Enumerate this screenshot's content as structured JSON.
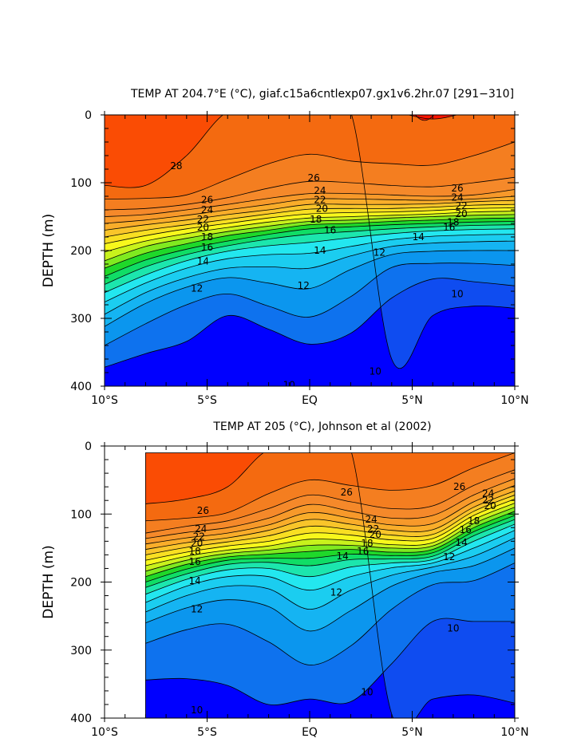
{
  "chart_data": [
    {
      "type": "heatmap",
      "subtype": "filled-contour depth-latitude section",
      "title": "TEMP AT 204.7°E (°C), giaf.c15a6cntlexp07.gx1v6.2hr.07 [291−310]",
      "xlabel": "",
      "ylabel": "DEPTH (m)",
      "x_ticks": [
        "10°S",
        "5°S",
        "EQ",
        "5°N",
        "10°N"
      ],
      "x_tick_values": [
        -10,
        -5,
        0,
        5,
        10
      ],
      "y_ticks": [
        "0",
        "100",
        "200",
        "300",
        "400"
      ],
      "y_tick_values": [
        0,
        100,
        200,
        300,
        400
      ],
      "xlim": [
        -10,
        10
      ],
      "ylim": [
        400,
        0
      ],
      "data_xlim": [
        -10,
        10
      ],
      "units": "°C",
      "contour_interval": 1,
      "color_levels": [
        8,
        9,
        10,
        11,
        12,
        13,
        14,
        15,
        16,
        17,
        18,
        19,
        20,
        21,
        22,
        23,
        24,
        25,
        26,
        27,
        28,
        29
      ],
      "isotherm_depths": {
        "lat": [
          -10,
          -8,
          -6,
          -4,
          -2,
          0,
          2,
          4,
          6,
          8,
          10
        ],
        "29": [
          -999,
          -999,
          -999,
          -999,
          -999,
          -999,
          -999,
          -999,
          6,
          -999,
          -999
        ],
        "28": [
          104,
          104,
          60,
          -999,
          -999,
          -999,
          -999,
          -999,
          -999,
          -999,
          -999
        ],
        "27": [
          124,
          123,
          118,
          95,
          72,
          58,
          68,
          72,
          74,
          60,
          40
        ],
        "26": [
          140,
          138,
          132,
          122,
          108,
          98,
          100,
          104,
          106,
          100,
          92
        ],
        "25": [
          150,
          147,
          140,
          132,
          123,
          116,
          116,
          118,
          120,
          118,
          110
        ],
        "24": [
          160,
          155,
          148,
          140,
          132,
          124,
          124,
          125,
          126,
          124,
          120
        ],
        "23": [
          170,
          162,
          155,
          147,
          140,
          132,
          132,
          132,
          131,
          128,
          126
        ],
        "22": [
          180,
          170,
          162,
          154,
          146,
          139,
          138,
          138,
          136,
          133,
          132
        ],
        "21": [
          190,
          178,
          168,
          160,
          152,
          146,
          144,
          143,
          141,
          138,
          137
        ],
        "20": [
          202,
          186,
          175,
          166,
          158,
          152,
          150,
          148,
          146,
          143,
          142
        ],
        "19": [
          215,
          194,
          182,
          172,
          164,
          157,
          155,
          152,
          150,
          148,
          147
        ],
        "18": [
          226,
          204,
          190,
          178,
          170,
          162,
          160,
          157,
          155,
          153,
          152
        ],
        "17": [
          238,
          214,
          198,
          186,
          176,
          168,
          165,
          162,
          160,
          158,
          157
        ],
        "16": [
          250,
          224,
          206,
          193,
          183,
          176,
          172,
          168,
          165,
          163,
          162
        ],
        "15": [
          262,
          236,
          215,
          201,
          193,
          188,
          181,
          175,
          171,
          169,
          168
        ],
        "14": [
          276,
          248,
          226,
          212,
          206,
          204,
          194,
          184,
          179,
          177,
          176
        ],
        "13": [
          294,
          262,
          240,
          226,
          224,
          226,
          208,
          194,
          189,
          187,
          186
        ],
        "12": [
          312,
          278,
          254,
          240,
          248,
          256,
          228,
          206,
          201,
          200,
          200
        ],
        "11": [
          340,
          308,
          280,
          264,
          282,
          298,
          268,
          225,
          219,
          219,
          222
        ],
        "10": [
          372,
          352,
          334,
          296,
          316,
          338,
          322,
          270,
          242,
          246,
          252
        ],
        "9": [
          -999,
          -999,
          -999,
          -999,
          -999,
          -999,
          -999,
          360,
          296,
          282,
          285
        ],
        "8": [
          -999,
          -999,
          -999,
          -999,
          -999,
          -999,
          -999,
          -999,
          -999,
          395,
          372
        ]
      },
      "contour_labels": [
        {
          "text": "28",
          "lat": -6.5,
          "depth": 75
        },
        {
          "text": "26",
          "lat": 0.2,
          "depth": 93
        },
        {
          "text": "26",
          "lat": 7.2,
          "depth": 108
        },
        {
          "text": "24",
          "lat": 0.5,
          "depth": 112
        },
        {
          "text": "24",
          "lat": 7.2,
          "depth": 122
        },
        {
          "text": "22",
          "lat": 0.5,
          "depth": 125
        },
        {
          "text": "22",
          "lat": 7.4,
          "depth": 134
        },
        {
          "text": "20",
          "lat": 0.6,
          "depth": 138
        },
        {
          "text": "20",
          "lat": 7.4,
          "depth": 146
        },
        {
          "text": "26",
          "lat": -5.0,
          "depth": 125
        },
        {
          "text": "24",
          "lat": -5.0,
          "depth": 140
        },
        {
          "text": "22",
          "lat": -5.2,
          "depth": 154
        },
        {
          "text": "20",
          "lat": -5.2,
          "depth": 166
        },
        {
          "text": "18",
          "lat": -5.0,
          "depth": 180
        },
        {
          "text": "18",
          "lat": 0.3,
          "depth": 154
        },
        {
          "text": "18",
          "lat": 7.0,
          "depth": 158
        },
        {
          "text": "16",
          "lat": -5.0,
          "depth": 195
        },
        {
          "text": "16",
          "lat": 1.0,
          "depth": 170
        },
        {
          "text": "16",
          "lat": 6.8,
          "depth": 166
        },
        {
          "text": "14",
          "lat": -5.2,
          "depth": 216
        },
        {
          "text": "14",
          "lat": 0.5,
          "depth": 200
        },
        {
          "text": "14",
          "lat": 5.3,
          "depth": 180
        },
        {
          "text": "12",
          "lat": -5.5,
          "depth": 256
        },
        {
          "text": "12",
          "lat": -0.3,
          "depth": 252
        },
        {
          "text": "12",
          "lat": 3.4,
          "depth": 203
        },
        {
          "text": "10",
          "lat": 7.2,
          "depth": 264
        },
        {
          "text": "10",
          "lat": 3.2,
          "depth": 378
        },
        {
          "text": "10",
          "lat": -1.0,
          "depth": 398
        }
      ]
    },
    {
      "type": "heatmap",
      "subtype": "filled-contour depth-latitude section",
      "title": "TEMP AT 205 (°C), Johnson et al (2002)",
      "xlabel": "",
      "ylabel": "DEPTH (m)",
      "x_ticks": [
        "10°S",
        "5°S",
        "EQ",
        "5°N",
        "10°N"
      ],
      "x_tick_values": [
        -10,
        -5,
        0,
        5,
        10
      ],
      "y_ticks": [
        "0",
        "100",
        "200",
        "300",
        "400"
      ],
      "y_tick_values": [
        0,
        100,
        200,
        300,
        400
      ],
      "xlim": [
        -10,
        10
      ],
      "ylim": [
        400,
        0
      ],
      "data_xlim": [
        -8,
        10
      ],
      "data_ylim": [
        10,
        400
      ],
      "units": "°C",
      "contour_interval": 1,
      "color_levels": [
        8,
        9,
        10,
        11,
        12,
        13,
        14,
        15,
        16,
        17,
        18,
        19,
        20,
        21,
        22,
        23,
        24,
        25,
        26,
        27,
        28,
        29
      ],
      "isotherm_depths": {
        "lat": [
          -8,
          -6,
          -4,
          -2,
          0,
          2,
          4,
          6,
          8,
          10
        ],
        "28": [
          85,
          78,
          60,
          -999,
          -999,
          -999,
          -999,
          -999,
          -999,
          -999
        ],
        "27": [
          110,
          106,
          98,
          70,
          50,
          58,
          65,
          58,
          32,
          10
        ],
        "26": [
          128,
          118,
          110,
          92,
          72,
          82,
          92,
          88,
          58,
          35
        ],
        "25": [
          136,
          127,
          120,
          106,
          86,
          96,
          106,
          102,
          72,
          48
        ],
        "24": [
          144,
          135,
          128,
          116,
          98,
          106,
          116,
          114,
          82,
          58
        ],
        "23": [
          152,
          142,
          135,
          124,
          108,
          115,
          124,
          123,
          90,
          66
        ],
        "22": [
          160,
          149,
          141,
          132,
          118,
          123,
          131,
          130,
          96,
          72
        ],
        "21": [
          168,
          156,
          147,
          140,
          128,
          131,
          138,
          136,
          102,
          78
        ],
        "20": [
          176,
          162,
          153,
          147,
          137,
          139,
          145,
          142,
          108,
          84
        ],
        "19": [
          184,
          168,
          158,
          153,
          146,
          146,
          150,
          147,
          114,
          90
        ],
        "18": [
          192,
          174,
          163,
          159,
          155,
          152,
          156,
          152,
          120,
          96
        ],
        "17": [
          200,
          181,
          168,
          165,
          165,
          159,
          161,
          157,
          126,
          102
        ],
        "16": [
          208,
          188,
          174,
          171,
          176,
          167,
          166,
          162,
          132,
          108
        ],
        "15": [
          218,
          196,
          182,
          180,
          192,
          178,
          172,
          167,
          140,
          115
        ],
        "14": [
          230,
          206,
          192,
          192,
          212,
          192,
          179,
          172,
          150,
          124
        ],
        "13": [
          244,
          220,
          206,
          210,
          240,
          212,
          190,
          178,
          162,
          135
        ],
        "12": [
          260,
          238,
          226,
          236,
          272,
          242,
          206,
          186,
          176,
          150
        ],
        "11": [
          290,
          270,
          262,
          288,
          322,
          294,
          240,
          204,
          198,
          172
        ],
        "10": [
          344,
          342,
          352,
          380,
          372,
          376,
          320,
          258,
          258,
          258
        ],
        "9": [
          -999,
          -999,
          -999,
          -999,
          -999,
          -999,
          394,
          372,
          366,
          378
        ]
      },
      "contour_labels": [
        {
          "text": "26",
          "lat": -5.2,
          "depth": 95
        },
        {
          "text": "26",
          "lat": 1.8,
          "depth": 68
        },
        {
          "text": "26",
          "lat": 7.3,
          "depth": 60
        },
        {
          "text": "24",
          "lat": -5.3,
          "depth": 122
        },
        {
          "text": "24",
          "lat": 3.0,
          "depth": 108
        },
        {
          "text": "24",
          "lat": 8.7,
          "depth": 70
        },
        {
          "text": "22",
          "lat": -5.4,
          "depth": 133
        },
        {
          "text": "22",
          "lat": 3.1,
          "depth": 122
        },
        {
          "text": "22",
          "lat": 8.7,
          "depth": 80
        },
        {
          "text": "20",
          "lat": -5.5,
          "depth": 143
        },
        {
          "text": "20",
          "lat": 3.2,
          "depth": 130
        },
        {
          "text": "20",
          "lat": 8.8,
          "depth": 88
        },
        {
          "text": "18",
          "lat": -5.6,
          "depth": 155
        },
        {
          "text": "18",
          "lat": 2.8,
          "depth": 143
        },
        {
          "text": "18",
          "lat": 8.0,
          "depth": 110
        },
        {
          "text": "16",
          "lat": -5.6,
          "depth": 170
        },
        {
          "text": "16",
          "lat": 2.6,
          "depth": 155
        },
        {
          "text": "16",
          "lat": 7.6,
          "depth": 123
        },
        {
          "text": "14",
          "lat": -5.6,
          "depth": 198
        },
        {
          "text": "14",
          "lat": 1.6,
          "depth": 162
        },
        {
          "text": "14",
          "lat": 7.4,
          "depth": 142
        },
        {
          "text": "12",
          "lat": -5.5,
          "depth": 240
        },
        {
          "text": "12",
          "lat": 1.3,
          "depth": 215
        },
        {
          "text": "12",
          "lat": 6.8,
          "depth": 163
        },
        {
          "text": "10",
          "lat": 7.0,
          "depth": 268
        },
        {
          "text": "10",
          "lat": 2.8,
          "depth": 362
        },
        {
          "text": "10",
          "lat": -5.5,
          "depth": 388
        }
      ]
    }
  ]
}
